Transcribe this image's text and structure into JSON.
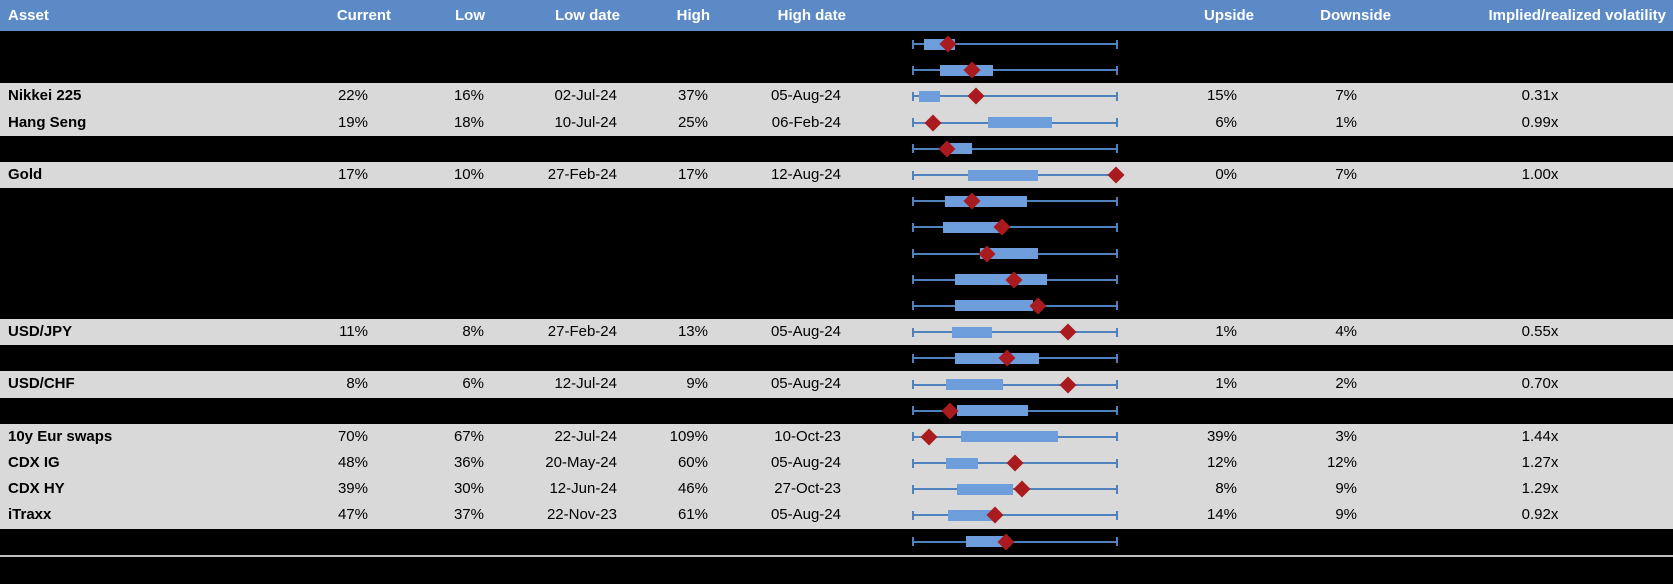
{
  "colors": {
    "header_bg": "#5B8AC6",
    "header_text": "#FFFFFF",
    "row_gray_bg": "#D9D9D9",
    "row_hidden_bg": "#000000",
    "whisker_blue": "#4F81BD",
    "box_blue": "#6D9DDB",
    "marker_red": "#A91B1E",
    "divider_gray": "#BFBFBF"
  },
  "header": {
    "asset": "Asset",
    "current": "Current",
    "low": "Low",
    "low_date": "Low date",
    "high": "High",
    "high_date": "High date",
    "upside": "Upside",
    "downside": "Downside",
    "vol": "Implied/realized volatility"
  },
  "chart_data": {
    "type": "boxplot",
    "note": "Implied volatility monitor. Each row: whisker = full 1y range (0-100% of span), blue box = interquartile band, red diamond = current level; box_start_pct/box_end_pct/marker_pct are percent across the whisker span read from pixels. Rows flagged hidden are blacked-out in the source and show only the box plot.",
    "rows": [
      {
        "hidden": true,
        "label": "",
        "current": "",
        "low": "",
        "low_date": "",
        "high": "",
        "high_date": "",
        "upside": "",
        "downside": "",
        "vol": "",
        "box_start_pct": 5.8,
        "box_end_pct": 20.9,
        "marker_pct": 17.5
      },
      {
        "hidden": true,
        "label": "",
        "current": "",
        "low": "",
        "low_date": "",
        "high": "",
        "high_date": "",
        "upside": "",
        "downside": "",
        "vol": "",
        "box_start_pct": 13.6,
        "box_end_pct": 39.3,
        "marker_pct": 29.1
      },
      {
        "hidden": false,
        "label": "Nikkei 225",
        "current": "22%",
        "low": "16%",
        "low_date": "02-Jul-24",
        "high": "37%",
        "high_date": "05-Aug-24",
        "upside": "15%",
        "downside": "7%",
        "vol": "0.31x",
        "box_start_pct": 3.4,
        "box_end_pct": 13.6,
        "marker_pct": 31.1
      },
      {
        "hidden": false,
        "label": "Hang Seng",
        "current": "19%",
        "low": "18%",
        "low_date": "10-Jul-24",
        "high": "25%",
        "high_date": "06-Feb-24",
        "upside": "6%",
        "downside": "1%",
        "vol": "0.99x",
        "box_start_pct": 36.9,
        "box_end_pct": 68.0,
        "marker_pct": 10.2
      },
      {
        "hidden": true,
        "label": "",
        "current": "",
        "low": "",
        "low_date": "",
        "high": "",
        "high_date": "",
        "upside": "",
        "downside": "",
        "vol": "",
        "box_start_pct": 18.4,
        "box_end_pct": 29.1,
        "marker_pct": 17.0
      },
      {
        "hidden": false,
        "label": "Gold",
        "current": "17%",
        "low": "10%",
        "low_date": "27-Feb-24",
        "high": "17%",
        "high_date": "12-Aug-24",
        "upside": "0%",
        "downside": "7%",
        "vol": "1.00x",
        "box_start_pct": 27.2,
        "box_end_pct": 61.2,
        "marker_pct": 99.0
      },
      {
        "hidden": true,
        "label": "",
        "current": "",
        "low": "",
        "low_date": "",
        "high": "",
        "high_date": "",
        "upside": "",
        "downside": "",
        "vol": "",
        "box_start_pct": 16.0,
        "box_end_pct": 55.8,
        "marker_pct": 29.1
      },
      {
        "hidden": true,
        "label": "",
        "current": "",
        "low": "",
        "low_date": "",
        "high": "",
        "high_date": "",
        "upside": "",
        "downside": "",
        "vol": "",
        "box_start_pct": 15.0,
        "box_end_pct": 42.7,
        "marker_pct": 43.7
      },
      {
        "hidden": true,
        "label": "",
        "current": "",
        "low": "",
        "low_date": "",
        "high": "",
        "high_date": "",
        "upside": "",
        "downside": "",
        "vol": "",
        "box_start_pct": 33.0,
        "box_end_pct": 61.2,
        "marker_pct": 36.4
      },
      {
        "hidden": true,
        "label": "",
        "current": "",
        "low": "",
        "low_date": "",
        "high": "",
        "high_date": "",
        "upside": "",
        "downside": "",
        "vol": "",
        "box_start_pct": 20.9,
        "box_end_pct": 65.5,
        "marker_pct": 49.5
      },
      {
        "hidden": true,
        "label": "",
        "current": "",
        "low": "",
        "low_date": "",
        "high": "",
        "high_date": "",
        "upside": "",
        "downside": "",
        "vol": "",
        "box_start_pct": 20.9,
        "box_end_pct": 58.7,
        "marker_pct": 61.2
      },
      {
        "hidden": false,
        "label": "USD/JPY",
        "current": "11%",
        "low": "8%",
        "low_date": "27-Feb-24",
        "high": "13%",
        "high_date": "05-Aug-24",
        "upside": "1%",
        "downside": "4%",
        "vol": "0.55x",
        "box_start_pct": 19.4,
        "box_end_pct": 38.8,
        "marker_pct": 75.7
      },
      {
        "hidden": true,
        "label": "",
        "current": "",
        "low": "",
        "low_date": "",
        "high": "",
        "high_date": "",
        "upside": "",
        "downside": "",
        "vol": "",
        "box_start_pct": 20.9,
        "box_end_pct": 61.7,
        "marker_pct": 46.1
      },
      {
        "hidden": false,
        "label": "USD/CHF",
        "current": "8%",
        "low": "6%",
        "low_date": "12-Jul-24",
        "high": "9%",
        "high_date": "05-Aug-24",
        "upside": "1%",
        "downside": "2%",
        "vol": "0.70x",
        "box_start_pct": 16.5,
        "box_end_pct": 44.2,
        "marker_pct": 75.7
      },
      {
        "hidden": true,
        "label": "",
        "current": "",
        "low": "",
        "low_date": "",
        "high": "",
        "high_date": "",
        "upside": "",
        "downside": "",
        "vol": "",
        "box_start_pct": 21.8,
        "box_end_pct": 56.3,
        "marker_pct": 18.4
      },
      {
        "hidden": false,
        "label": "10y Eur swaps",
        "current": "70%",
        "low": "67%",
        "low_date": "22-Jul-24",
        "high": "109%",
        "high_date": "10-Oct-23",
        "upside": "39%",
        "downside": "3%",
        "vol": "1.44x",
        "box_start_pct": 23.8,
        "box_end_pct": 70.9,
        "marker_pct": 8.3
      },
      {
        "hidden": false,
        "label": "CDX IG",
        "current": "48%",
        "low": "36%",
        "low_date": "20-May-24",
        "high": "60%",
        "high_date": "05-Aug-24",
        "upside": "12%",
        "downside": "12%",
        "vol": "1.27x",
        "box_start_pct": 16.5,
        "box_end_pct": 32.0,
        "marker_pct": 50.0
      },
      {
        "hidden": false,
        "label": "CDX HY",
        "current": "39%",
        "low": "30%",
        "low_date": "12-Jun-24",
        "high": "46%",
        "high_date": "27-Oct-23",
        "upside": "8%",
        "downside": "9%",
        "vol": "1.29x",
        "box_start_pct": 21.8,
        "box_end_pct": 49.0,
        "marker_pct": 53.4
      },
      {
        "hidden": false,
        "label": "iTraxx",
        "current": "47%",
        "low": "37%",
        "low_date": "22-Nov-23",
        "high": "61%",
        "high_date": "05-Aug-24",
        "upside": "14%",
        "downside": "9%",
        "vol": "0.92x",
        "box_start_pct": 17.5,
        "box_end_pct": 38.8,
        "marker_pct": 40.3
      },
      {
        "hidden": true,
        "label": "",
        "current": "",
        "low": "",
        "low_date": "",
        "high": "",
        "high_date": "",
        "upside": "",
        "downside": "",
        "vol": "",
        "box_start_pct": 26.2,
        "box_end_pct": 45.1,
        "marker_pct": 45.6
      }
    ]
  }
}
